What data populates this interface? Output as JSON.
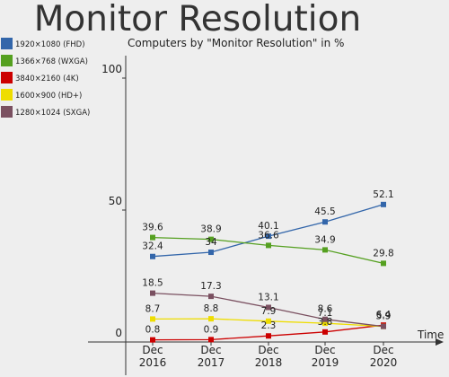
{
  "chart_data": {
    "type": "line",
    "title": "Monitor Resolution",
    "subtitle": "Computers by \"Monitor Resolution\" in %",
    "xlabel": "Time",
    "ylabel": "",
    "categories": [
      "Dec 2016",
      "Dec 2017",
      "Dec 2018",
      "Dec 2019",
      "Dec 2020"
    ],
    "category_lines": [
      [
        "Dec",
        "2016"
      ],
      [
        "Dec",
        "2017"
      ],
      [
        "Dec",
        "2018"
      ],
      [
        "Dec",
        "2019"
      ],
      [
        "Dec",
        "2020"
      ]
    ],
    "y_ticks": [
      "100",
      "50",
      "0"
    ],
    "ylim": [
      0,
      110
    ],
    "grid": false,
    "legend_position": "top-left",
    "series": [
      {
        "name": "1920×1080 (FHD)",
        "color": "#3366aa",
        "values": [
          32.4,
          34,
          40.1,
          45.5,
          52.1
        ],
        "labels": [
          "32.4",
          "34",
          "40.1",
          "45.5",
          "52.1"
        ]
      },
      {
        "name": "1366×768 (WXGA)",
        "color": "#55a020",
        "values": [
          39.6,
          38.9,
          36.6,
          34.9,
          29.8
        ],
        "labels": [
          "39.6",
          "38.9",
          "36.6",
          "34.9",
          "29.8"
        ]
      },
      {
        "name": "3840×2160 (4K)",
        "color": "#cc0000",
        "values": [
          0.8,
          0.9,
          2.3,
          3.8,
          6.4
        ],
        "labels": [
          "0.8",
          "0.9",
          "2.3",
          "3.8",
          "6.4"
        ]
      },
      {
        "name": "1600×900 (HD+)",
        "color": "#eedd00",
        "values": [
          8.7,
          8.8,
          7.9,
          7.1,
          5.9
        ],
        "labels": [
          "8.7",
          "8.8",
          "7.9",
          "7.1",
          "5.9"
        ]
      },
      {
        "name": "1280×1024 (SXGA)",
        "color": "#7a5060",
        "values": [
          18.5,
          17.3,
          13.1,
          8.6,
          5.9
        ],
        "labels": [
          "18.5",
          "17.3",
          "13.1",
          "8.6",
          "5.9"
        ]
      }
    ]
  }
}
